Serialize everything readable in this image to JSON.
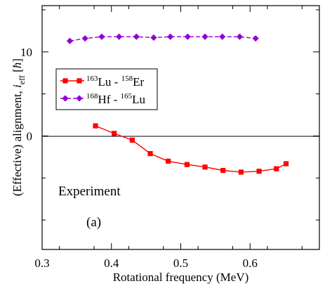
{
  "chart_data": {
    "type": "line",
    "xlabel": "Rotational frequency (MeV)",
    "ylabel": {
      "prefix": "(Effective) alignment, ",
      "symbol": "i",
      "subscript": "eff",
      "unit_open": " [",
      "unit": "ħ",
      "unit_close": "]"
    },
    "xlim": [
      0.3,
      0.7
    ],
    "ylim": [
      -13.5,
      15.5
    ],
    "x_ticks": [
      0.3,
      0.4,
      0.5,
      0.6
    ],
    "x_tick_labels": [
      "0.3",
      "0.4",
      "0.5",
      "0.6"
    ],
    "y_ticks": [
      0,
      10
    ],
    "y_tick_labels": [
      "0",
      "10"
    ],
    "zero_line": true,
    "grid": false,
    "legend_position": "upper-left",
    "annotations": [
      {
        "key": "experiment",
        "text": "Experiment"
      },
      {
        "key": "panel",
        "text": "(a)"
      }
    ],
    "series": [
      {
        "label_parts": [
          {
            "sup": "163",
            "base": "Lu"
          },
          {
            "sep": "  -  "
          },
          {
            "sup": "158",
            "base": "Er"
          }
        ],
        "color": "#ff0000",
        "marker": "square",
        "line": "solid",
        "x": [
          0.377,
          0.404,
          0.43,
          0.456,
          0.482,
          0.509,
          0.535,
          0.561,
          0.587,
          0.613,
          0.638,
          0.652
        ],
        "y": [
          1.2,
          0.3,
          -0.5,
          -2.1,
          -3.0,
          -3.4,
          -3.7,
          -4.1,
          -4.3,
          -4.2,
          -3.9,
          -3.3
        ]
      },
      {
        "label_parts": [
          {
            "sup": "168",
            "base": "Hf"
          },
          {
            "sep": "  -  "
          },
          {
            "sup": "165",
            "base": "Lu"
          }
        ],
        "color": "#9400d3",
        "marker": "diamond",
        "line": "dashed",
        "x": [
          0.34,
          0.362,
          0.386,
          0.411,
          0.436,
          0.461,
          0.485,
          0.51,
          0.535,
          0.56,
          0.585,
          0.608
        ],
        "y": [
          11.3,
          11.6,
          11.8,
          11.8,
          11.8,
          11.7,
          11.8,
          11.8,
          11.8,
          11.8,
          11.8,
          11.6
        ]
      }
    ]
  }
}
